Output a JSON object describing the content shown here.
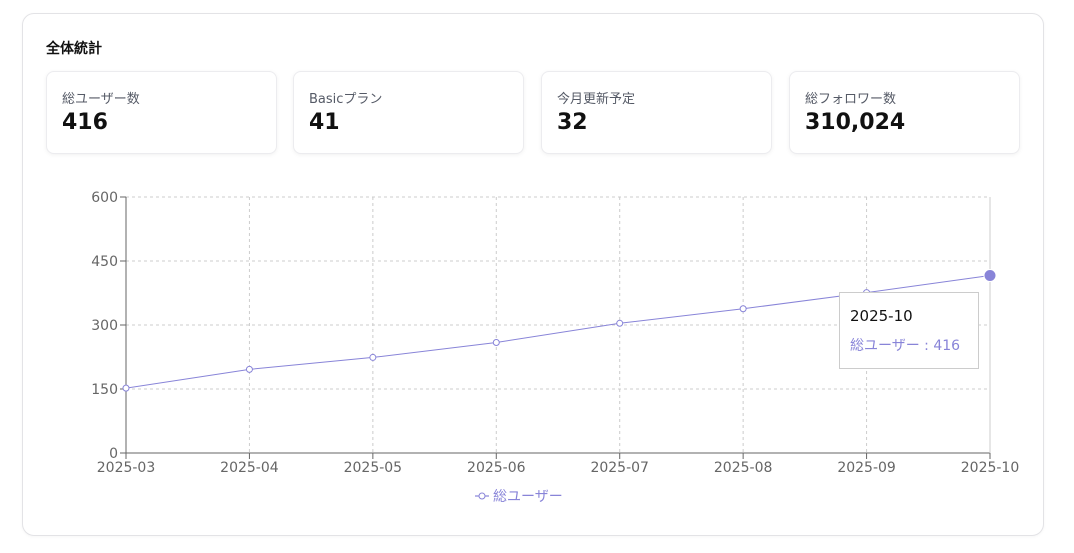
{
  "panel": {
    "title": "全体統計"
  },
  "stats": [
    {
      "label": "総ユーザー数",
      "value": "416"
    },
    {
      "label": "Basicプラン",
      "value": "41"
    },
    {
      "label": "今月更新予定",
      "value": "32"
    },
    {
      "label": "総フォロワー数",
      "value": "310,024"
    }
  ],
  "colors": {
    "series": "#8884d8",
    "grid": "#cccccc",
    "axis": "#666666"
  },
  "tooltip": {
    "x": "2025-10",
    "series_name": "総ユーザー",
    "separator": " : ",
    "value": "416",
    "text": "総ユーザー : 416"
  },
  "chart_data": {
    "type": "line",
    "x": [
      "2025-03",
      "2025-04",
      "2025-05",
      "2025-06",
      "2025-07",
      "2025-08",
      "2025-09",
      "2025-10"
    ],
    "series": [
      {
        "name": "総ユーザー",
        "values": [
          152,
          196,
          224,
          259,
          304,
          338,
          376,
          416
        ]
      }
    ],
    "ylim": [
      0,
      600
    ],
    "yticks": [
      "0",
      "150",
      "300",
      "450",
      "600"
    ],
    "grid": true,
    "legend": "bottom-center",
    "active_point": "2025-10"
  }
}
